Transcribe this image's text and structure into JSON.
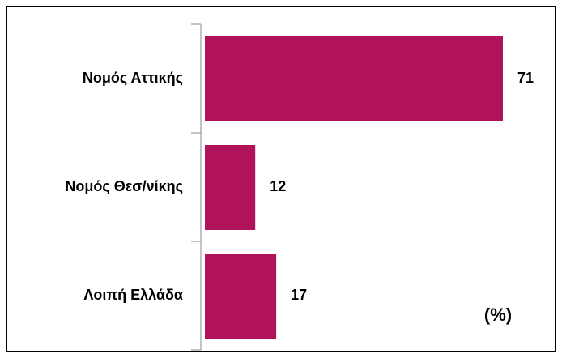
{
  "chart_data": {
    "type": "hbar",
    "categories": [
      "Νομός Αττικής",
      "Νομός Θεσ/νίκης",
      "Λοιπή Ελλάδα"
    ],
    "values": [
      71,
      12,
      17
    ],
    "color": "#b0135a",
    "annotation": "(%)"
  }
}
